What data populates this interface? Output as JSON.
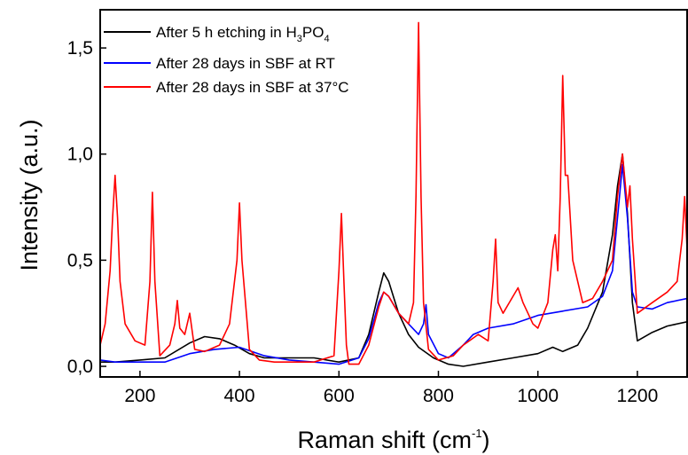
{
  "chart_data": {
    "type": "line",
    "xlabel": "Raman shift (cm",
    "xlabel_sup": "-1",
    "xlabel_end": ")",
    "ylabel": "Intensity (a.u.)",
    "xlim": [
      120,
      1300
    ],
    "ylim": [
      -0.05,
      1.68
    ],
    "xticks": [
      200,
      400,
      600,
      800,
      1000,
      1200
    ],
    "xtick_labels": [
      "200",
      "400",
      "600",
      "800",
      "1000",
      "1200"
    ],
    "yticks": [
      0.0,
      0.5,
      1.0,
      1.5
    ],
    "ytick_labels": [
      "0,0",
      "0,5",
      "1,0",
      "1,5"
    ],
    "legend_position": "top-left",
    "series": [
      {
        "name_parts": {
          "a": "After 5 h etching in H",
          "b": "3",
          "c": "PO",
          "d": "4"
        },
        "color": "#000000",
        "x": [
          120,
          150,
          200,
          250,
          300,
          330,
          360,
          390,
          420,
          450,
          500,
          550,
          600,
          640,
          660,
          680,
          690,
          700,
          720,
          740,
          760,
          790,
          820,
          850,
          900,
          950,
          1000,
          1030,
          1050,
          1080,
          1100,
          1130,
          1150,
          1160,
          1170,
          1180,
          1190,
          1200,
          1230,
          1260,
          1300
        ],
        "y": [
          0.02,
          0.02,
          0.03,
          0.04,
          0.11,
          0.14,
          0.13,
          0.1,
          0.06,
          0.04,
          0.04,
          0.04,
          0.02,
          0.04,
          0.15,
          0.35,
          0.44,
          0.4,
          0.25,
          0.15,
          0.09,
          0.04,
          0.01,
          0.0,
          0.02,
          0.04,
          0.06,
          0.09,
          0.07,
          0.1,
          0.18,
          0.35,
          0.62,
          0.85,
          1.0,
          0.72,
          0.3,
          0.12,
          0.16,
          0.19,
          0.21
        ]
      },
      {
        "name": "After 28 days in SBF at RT",
        "color": "#0000ff",
        "x": [
          120,
          150,
          200,
          250,
          300,
          350,
          400,
          450,
          500,
          550,
          600,
          640,
          660,
          680,
          690,
          700,
          720,
          740,
          760,
          770,
          775,
          780,
          800,
          820,
          850,
          870,
          900,
          950,
          1000,
          1050,
          1100,
          1130,
          1150,
          1160,
          1170,
          1180,
          1190,
          1200,
          1230,
          1260,
          1300
        ],
        "y": [
          0.03,
          0.02,
          0.02,
          0.02,
          0.06,
          0.08,
          0.09,
          0.05,
          0.03,
          0.02,
          0.01,
          0.04,
          0.13,
          0.3,
          0.35,
          0.33,
          0.25,
          0.2,
          0.15,
          0.2,
          0.29,
          0.15,
          0.06,
          0.04,
          0.1,
          0.15,
          0.18,
          0.2,
          0.24,
          0.26,
          0.28,
          0.33,
          0.45,
          0.7,
          0.95,
          0.7,
          0.35,
          0.28,
          0.27,
          0.3,
          0.32
        ]
      },
      {
        "name": "After 28 days in SBF at 37°C",
        "color": "#ff0000",
        "x": [
          120,
          130,
          140,
          145,
          150,
          155,
          160,
          170,
          190,
          210,
          220,
          225,
          230,
          240,
          260,
          270,
          275,
          280,
          290,
          300,
          310,
          330,
          360,
          380,
          395,
          400,
          405,
          420,
          440,
          470,
          500,
          550,
          590,
          600,
          605,
          610,
          615,
          620,
          640,
          660,
          680,
          690,
          700,
          720,
          740,
          750,
          755,
          760,
          765,
          770,
          780,
          800,
          830,
          850,
          880,
          900,
          910,
          915,
          920,
          930,
          950,
          960,
          970,
          990,
          1000,
          1020,
          1030,
          1035,
          1040,
          1045,
          1050,
          1055,
          1060,
          1070,
          1090,
          1110,
          1130,
          1150,
          1160,
          1170,
          1180,
          1185,
          1190,
          1200,
          1230,
          1260,
          1280,
          1290,
          1295,
          1300
        ],
        "y": [
          0.1,
          0.2,
          0.45,
          0.7,
          0.9,
          0.7,
          0.4,
          0.2,
          0.12,
          0.1,
          0.4,
          0.82,
          0.4,
          0.05,
          0.1,
          0.2,
          0.31,
          0.18,
          0.15,
          0.25,
          0.08,
          0.07,
          0.1,
          0.2,
          0.5,
          0.77,
          0.5,
          0.08,
          0.03,
          0.02,
          0.02,
          0.02,
          0.05,
          0.45,
          0.72,
          0.4,
          0.1,
          0.01,
          0.01,
          0.1,
          0.28,
          0.35,
          0.33,
          0.25,
          0.2,
          0.3,
          0.8,
          1.62,
          0.8,
          0.3,
          0.08,
          0.03,
          0.05,
          0.1,
          0.15,
          0.12,
          0.4,
          0.6,
          0.3,
          0.25,
          0.33,
          0.37,
          0.3,
          0.2,
          0.18,
          0.3,
          0.55,
          0.62,
          0.45,
          0.8,
          1.37,
          0.9,
          0.9,
          0.5,
          0.3,
          0.32,
          0.4,
          0.5,
          0.8,
          1.0,
          0.75,
          0.85,
          0.6,
          0.25,
          0.3,
          0.35,
          0.4,
          0.6,
          0.8,
          0.55
        ]
      }
    ]
  }
}
